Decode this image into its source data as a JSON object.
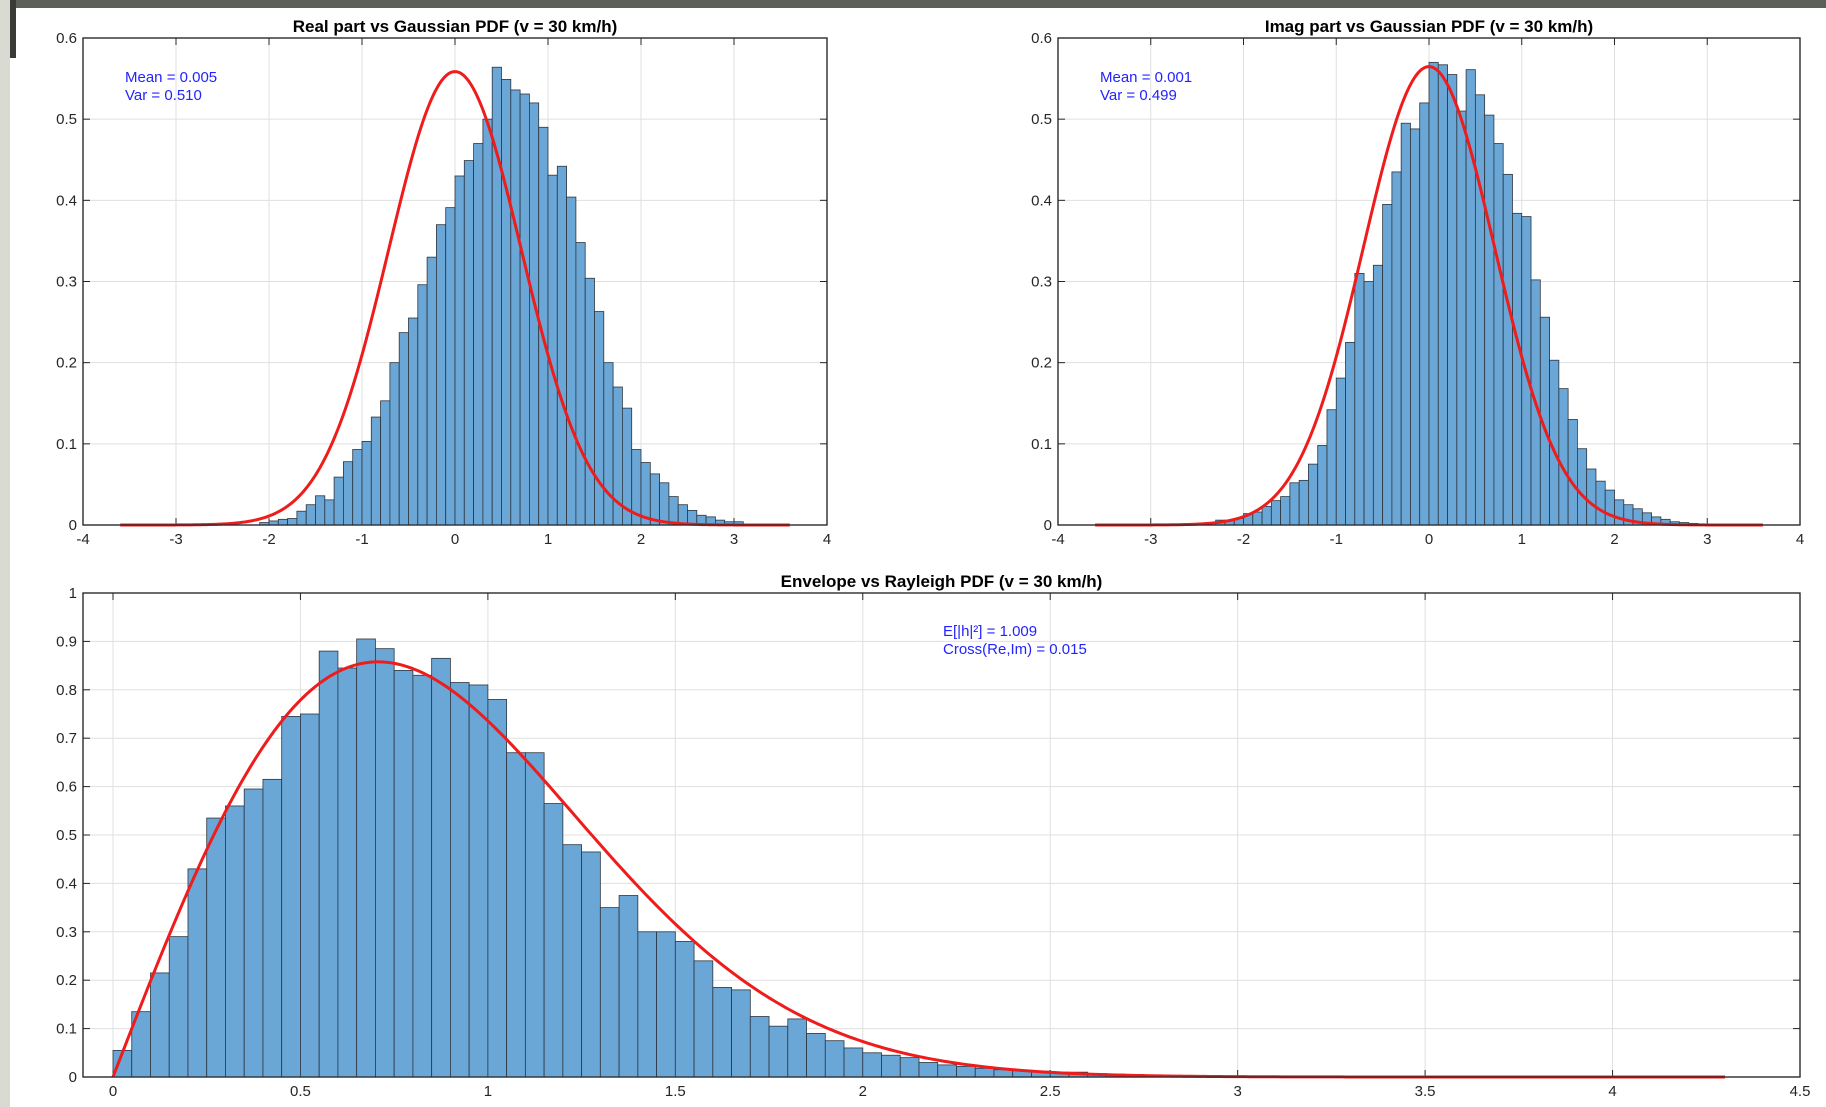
{
  "chart_data": [
    {
      "type": "bar",
      "title": "Real part vs Gaussian PDF (v = 30 km/h)",
      "xlim": [
        -4,
        4
      ],
      "ylim": [
        0,
        0.6
      ],
      "xticks": [
        "-4",
        "-3",
        "-2",
        "-1",
        "0",
        "1",
        "2",
        "3",
        "4"
      ],
      "yticks": [
        "0",
        "0.1",
        "0.2",
        "0.3",
        "0.4",
        "0.5",
        "0.6"
      ],
      "grid": true,
      "bin_width": 0.1,
      "x_start": -2.1,
      "values": [
        0.003,
        0.005,
        0.007,
        0.008,
        0.017,
        0.025,
        0.036,
        0.031,
        0.059,
        0.078,
        0.093,
        0.103,
        0.133,
        0.153,
        0.2,
        0.237,
        0.255,
        0.296,
        0.33,
        0.37,
        0.391,
        0.43,
        0.449,
        0.47,
        0.5,
        0.564,
        0.549,
        0.536,
        0.531,
        0.52,
        0.49,
        0.431,
        0.442,
        0.404,
        0.348,
        0.304,
        0.263,
        0.2,
        0.17,
        0.144,
        0.093,
        0.077,
        0.063,
        0.052,
        0.035,
        0.025,
        0.018,
        0.012,
        0.01,
        0.006,
        0.004,
        0.004
      ],
      "curve": {
        "type": "gaussian",
        "mean": 0,
        "variance": 0.51,
        "x_range": [
          -3.6,
          3.6
        ]
      },
      "annotations": [
        "Mean = 0.005",
        "Var = 0.510"
      ]
    },
    {
      "type": "bar",
      "title": "Imag part vs Gaussian PDF (v = 30 km/h)",
      "xlim": [
        -4,
        4
      ],
      "ylim": [
        0,
        0.6
      ],
      "xticks": [
        "-4",
        "-3",
        "-2",
        "-1",
        "0",
        "1",
        "2",
        "3",
        "4"
      ],
      "yticks": [
        "0",
        "0.1",
        "0.2",
        "0.3",
        "0.4",
        "0.5",
        "0.6"
      ],
      "grid": true,
      "bin_width": 0.1,
      "x_start": -2.3,
      "values": [
        0.006,
        0.006,
        0.008,
        0.014,
        0.016,
        0.023,
        0.03,
        0.035,
        0.052,
        0.055,
        0.075,
        0.098,
        0.142,
        0.181,
        0.225,
        0.31,
        0.3,
        0.32,
        0.395,
        0.435,
        0.495,
        0.488,
        0.52,
        0.57,
        0.567,
        0.555,
        0.51,
        0.561,
        0.53,
        0.505,
        0.47,
        0.432,
        0.384,
        0.38,
        0.302,
        0.256,
        0.203,
        0.168,
        0.13,
        0.094,
        0.069,
        0.054,
        0.043,
        0.031,
        0.025,
        0.02,
        0.015,
        0.01,
        0.007,
        0.004,
        0.003,
        0.002
      ],
      "curve": {
        "type": "gaussian",
        "mean": 0,
        "variance": 0.499,
        "x_range": [
          -3.6,
          3.6
        ]
      },
      "annotations": [
        "Mean = 0.001",
        "Var = 0.499"
      ]
    },
    {
      "type": "bar",
      "title": "Envelope vs Rayleigh PDF (v = 30 km/h)",
      "xlim": [
        -0.08,
        4.5
      ],
      "ylim": [
        0,
        1
      ],
      "xticks": [
        "0",
        "0.5",
        "1",
        "1.5",
        "2",
        "2.5",
        "3",
        "3.5",
        "4",
        "4.5"
      ],
      "yticks": [
        "0",
        "0.1",
        "0.2",
        "0.3",
        "0.4",
        "0.5",
        "0.6",
        "0.7",
        "0.8",
        "0.9",
        "1"
      ],
      "grid": true,
      "bin_width": 0.05,
      "x_start": 0,
      "values": [
        0.055,
        0.135,
        0.215,
        0.29,
        0.43,
        0.535,
        0.56,
        0.595,
        0.615,
        0.745,
        0.75,
        0.88,
        0.845,
        0.905,
        0.885,
        0.84,
        0.83,
        0.865,
        0.815,
        0.81,
        0.78,
        0.67,
        0.67,
        0.565,
        0.48,
        0.465,
        0.35,
        0.375,
        0.3,
        0.3,
        0.28,
        0.24,
        0.185,
        0.18,
        0.125,
        0.105,
        0.12,
        0.09,
        0.075,
        0.06,
        0.05,
        0.045,
        0.04,
        0.03,
        0.025,
        0.022,
        0.018,
        0.015,
        0.013,
        0.012,
        0.01,
        0.01,
        0.007,
        0.006,
        0.005,
        0.004,
        0.003,
        0.002,
        0.002,
        0.001
      ],
      "curve": {
        "type": "rayleigh",
        "sigma2": 0.5,
        "x_range": [
          0,
          4.3
        ]
      },
      "annotations": [
        "E[|h|²]  =  1.009",
        "Cross(Re,Im)  =  0.015"
      ]
    }
  ],
  "colors": {
    "bar": "#6aa6d6",
    "curve": "#ef1c1c",
    "annotation": "#2323ff"
  }
}
